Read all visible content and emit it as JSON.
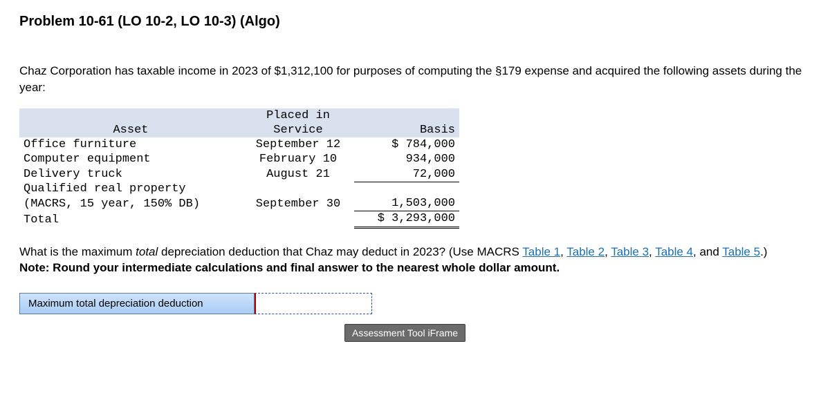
{
  "heading": "Problem 10-61 (LO 10-2, LO 10-3) (Algo)",
  "intro": "Chaz Corporation has taxable income in 2023 of $1,312,100 for purposes of computing the §179 expense and acquired the following assets during the year:",
  "table": {
    "header": {
      "asset": "Asset",
      "service_line1": "Placed in",
      "service_line2": "Service",
      "basis": "Basis"
    },
    "rows": [
      {
        "asset": "Office furniture",
        "service": "September 12",
        "basis": "$ 784,000"
      },
      {
        "asset": "Computer equipment",
        "service": "February 10",
        "basis": "934,000"
      },
      {
        "asset": "Delivery truck",
        "service": "August 21",
        "basis": "72,000"
      },
      {
        "asset": "Qualified real property (MACRS, 15 year, 150% DB)",
        "service": "September 30",
        "basis": "1,503,000"
      }
    ],
    "total_label": "Total",
    "total_basis": "$ 3,293,000",
    "col_widths": {
      "asset": 310,
      "service": 150,
      "basis": 140
    },
    "header_bg": "#d9e1ef"
  },
  "question": {
    "lead": "What is the maximum ",
    "italic": "total",
    "after_italic": " depreciation deduction that Chaz may deduct in 2023? (Use MACRS ",
    "links": [
      "Table 1",
      "Table 2",
      "Table 3",
      "Table 4",
      "Table 5"
    ],
    "link_sep": ", ",
    "and_word": "and ",
    "after_links": ".)",
    "link_color": "#1a6fb0"
  },
  "note": "Note: Round your intermediate calculations and final answer to the nearest whole dollar amount.",
  "answer": {
    "label": "Maximum total depreciation deduction",
    "value": "",
    "bg_gradient_top": "#cfe3fb",
    "bg_gradient_bottom": "#a9cdf5",
    "border_color": "#5b7ca3",
    "input_border_dash": "#2a4fb0",
    "input_border_left": "#b00000"
  },
  "iframe_badge": "Assessment Tool iFrame"
}
